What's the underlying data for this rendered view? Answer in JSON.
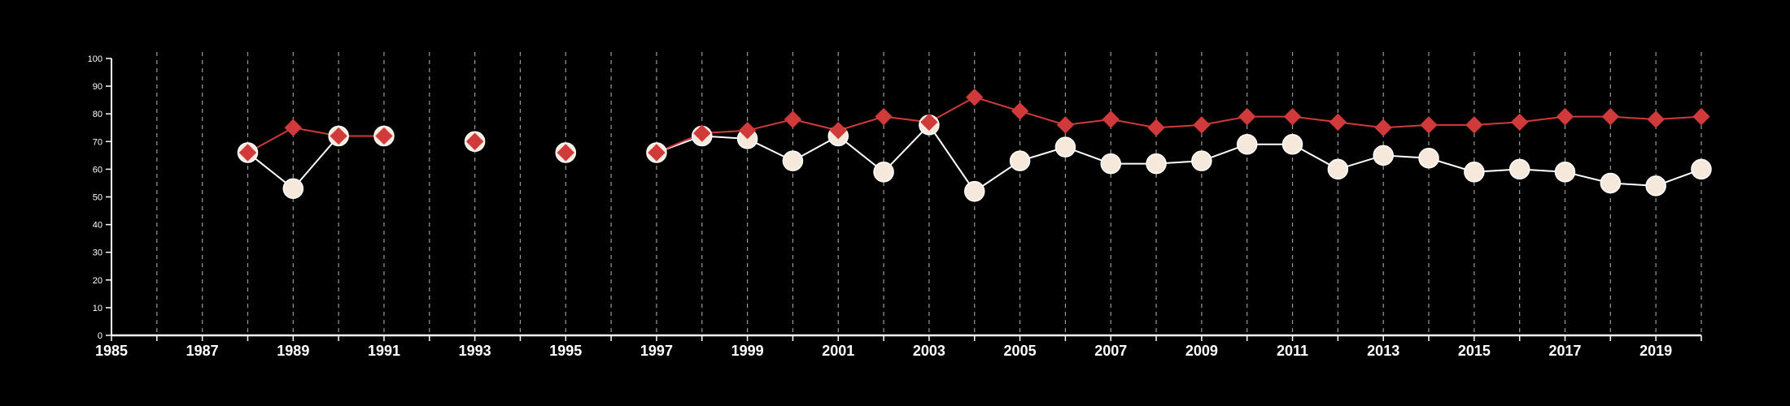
{
  "chart_data": {
    "type": "line",
    "title": "",
    "xlabel": "",
    "ylabel": "",
    "xlim": [
      1985,
      2020
    ],
    "ylim": [
      0,
      100
    ],
    "yticks": [
      0,
      10,
      20,
      30,
      40,
      50,
      60,
      70,
      80,
      90,
      100
    ],
    "xtick_labels": [
      1985,
      1987,
      1989,
      1991,
      1993,
      1995,
      1997,
      1999,
      2001,
      2003,
      2005,
      2007,
      2009,
      2011,
      2013,
      2015,
      2017,
      2019
    ],
    "grid": "vertical dashed lines at every year",
    "legend": "none",
    "background": "#000000",
    "series": [
      {
        "marker": "circle",
        "color": "#ffffff",
        "fill": "#f6e9db",
        "segments": [
          [
            [
              1988,
              66
            ],
            [
              1989,
              53
            ],
            [
              1990,
              72
            ],
            [
              1991,
              72
            ]
          ],
          [
            [
              1993,
              70
            ]
          ],
          [
            [
              1995,
              66
            ]
          ],
          [
            [
              1997,
              66
            ],
            [
              1998,
              72
            ],
            [
              1999,
              71
            ],
            [
              2000,
              63
            ],
            [
              2001,
              72
            ],
            [
              2002,
              59
            ],
            [
              2003,
              76
            ],
            [
              2004,
              52
            ],
            [
              2005,
              63
            ],
            [
              2006,
              68
            ],
            [
              2007,
              62
            ],
            [
              2008,
              62
            ],
            [
              2009,
              63
            ],
            [
              2010,
              69
            ],
            [
              2011,
              69
            ],
            [
              2012,
              60
            ],
            [
              2013,
              65
            ],
            [
              2014,
              64
            ],
            [
              2015,
              59
            ],
            [
              2016,
              60
            ],
            [
              2017,
              59
            ],
            [
              2018,
              55
            ],
            [
              2019,
              54
            ],
            [
              2020,
              60
            ]
          ]
        ]
      },
      {
        "marker": "diamond",
        "color": "#d03a3a",
        "segments": [
          [
            [
              1988,
              66
            ],
            [
              1989,
              75
            ],
            [
              1990,
              72
            ],
            [
              1991,
              72
            ]
          ],
          [
            [
              1993,
              70
            ]
          ],
          [
            [
              1995,
              66
            ]
          ],
          [
            [
              1997,
              66
            ],
            [
              1998,
              73
            ],
            [
              1999,
              74
            ],
            [
              2000,
              78
            ],
            [
              2001,
              74
            ],
            [
              2002,
              79
            ],
            [
              2003,
              77
            ],
            [
              2004,
              86
            ],
            [
              2005,
              81
            ],
            [
              2006,
              76
            ],
            [
              2007,
              78
            ],
            [
              2008,
              75
            ],
            [
              2009,
              76
            ],
            [
              2010,
              79
            ],
            [
              2011,
              79
            ],
            [
              2012,
              77
            ],
            [
              2013,
              75
            ],
            [
              2014,
              76
            ],
            [
              2015,
              76
            ],
            [
              2016,
              77
            ],
            [
              2017,
              79
            ],
            [
              2018,
              79
            ],
            [
              2019,
              78
            ],
            [
              2020,
              79
            ]
          ]
        ]
      }
    ]
  }
}
